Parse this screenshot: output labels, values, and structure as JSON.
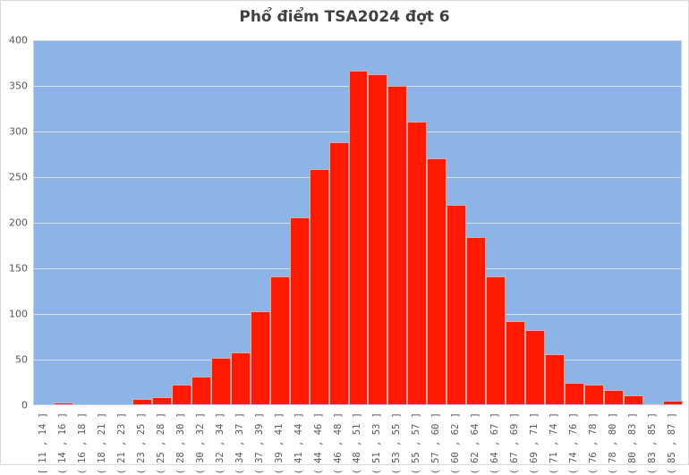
{
  "chart_data": {
    "type": "bar",
    "title": "Phổ điểm TSA2024 đợt 6",
    "xlabel": "",
    "ylabel": "",
    "ylim": [
      0,
      400
    ],
    "yticks": [
      0,
      50,
      100,
      150,
      200,
      250,
      300,
      350,
      400
    ],
    "grid": true,
    "legend": null,
    "colors": {
      "bar": "#ff1a00",
      "plot_bg": "#8db4e7",
      "grid": "#d6e2f5"
    },
    "categories": [
      "[ 11 , 14 ]",
      "( 14 , 16 ]",
      "( 16 , 18 ]",
      "( 18 , 21 ]",
      "( 21 , 23 ]",
      "( 23 , 25 ]",
      "( 25 , 28 ]",
      "( 28 , 30 ]",
      "( 30 , 32 ]",
      "( 32 , 34 ]",
      "( 34 , 37 ]",
      "( 37 , 39 ]",
      "( 39 , 41 ]",
      "( 41 , 44 ]",
      "( 44 , 46 ]",
      "( 46 , 48 ]",
      "( 48 , 51 ]",
      "( 51 , 53 ]",
      "( 53 , 55 ]",
      "( 55 , 57 ]",
      "( 57 , 60 ]",
      "( 60 , 62 ]",
      "( 62 , 64 ]",
      "( 64 , 67 ]",
      "( 67 , 69 ]",
      "( 69 , 71 ]",
      "( 71 , 74 ]",
      "( 74 , 76 ]",
      "( 76 , 78 ]",
      "( 78 , 80 ]",
      "( 80 , 83 ]",
      "( 83 , 85 ]",
      "( 85 , 87 ]"
    ],
    "values": [
      0,
      2,
      0,
      0,
      0,
      6,
      8,
      22,
      30,
      51,
      57,
      102,
      140,
      205,
      258,
      287,
      366,
      362,
      349,
      310,
      270,
      219,
      183,
      140,
      91,
      81,
      55,
      24,
      22,
      16,
      10,
      1,
      4
    ]
  }
}
